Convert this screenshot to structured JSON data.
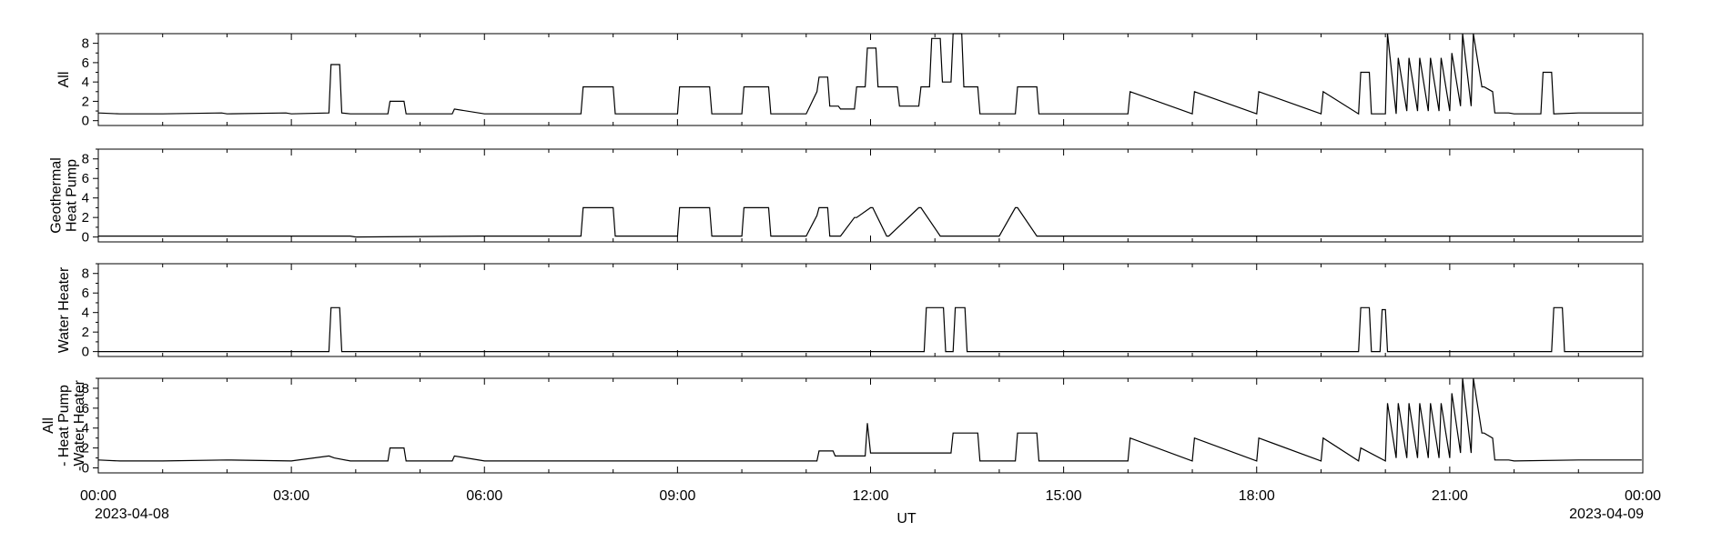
{
  "figure": {
    "x_axis_label": "UT",
    "x_ticks": [
      "00:00",
      "03:00",
      "06:00",
      "09:00",
      "12:00",
      "15:00",
      "18:00",
      "21:00",
      "00:00"
    ],
    "x_start_date": "2023-04-08",
    "x_end_date": "2023-04-09",
    "y_ticks": [
      "0",
      "2",
      "4",
      "6",
      "8"
    ]
  },
  "chart_data": [
    {
      "type": "line",
      "ylabel": [
        "All"
      ],
      "xlim": [
        "2023-04-08 00:00",
        "2023-04-09 00:00"
      ],
      "ylim": [
        -0.5,
        9
      ],
      "series": [
        {
          "x": [
            "00:00",
            "00:20",
            "01:00",
            "01:55",
            "02:00",
            "02:55",
            "03:00",
            "03:35",
            "03:37",
            "03:45",
            "03:47",
            "03:55",
            "04:00",
            "04:30",
            "04:32",
            "04:45",
            "04:47",
            "05:30",
            "05:32",
            "06:00",
            "06:55",
            "07:00",
            "07:30",
            "07:32",
            "08:00",
            "08:02",
            "09:00",
            "09:02",
            "09:30",
            "09:32",
            "10:00",
            "10:02",
            "10:25",
            "10:27",
            "11:00",
            "11:10",
            "11:12",
            "11:20",
            "11:22",
            "11:30",
            "11:32",
            "11:45",
            "11:47",
            "11:55",
            "11:57",
            "12:05",
            "12:07",
            "12:25",
            "12:27",
            "12:45",
            "12:47",
            "12:55",
            "12:57",
            "13:05",
            "13:07",
            "13:15",
            "13:17",
            "13:25",
            "13:27",
            "13:40",
            "13:42",
            "14:00",
            "14:15",
            "14:17",
            "14:35",
            "14:37",
            "15:00",
            "16:00",
            "16:02",
            "17:00",
            "17:02",
            "18:00",
            "18:02",
            "19:00",
            "19:02",
            "19:35",
            "19:37",
            "19:45",
            "19:47",
            "20:00",
            "20:02",
            "20:10",
            "20:12",
            "20:20",
            "20:22",
            "20:30",
            "20:32",
            "20:40",
            "20:42",
            "20:50",
            "20:52",
            "21:00",
            "21:02",
            "21:10",
            "21:12",
            "21:20",
            "21:22",
            "21:30",
            "21:32",
            "21:40",
            "21:42",
            "21:55",
            "22:00",
            "22:25",
            "22:27",
            "22:35",
            "22:37",
            "23:00",
            "23:59"
          ],
          "y": [
            0.8,
            0.7,
            0.7,
            0.8,
            0.7,
            0.8,
            0.7,
            0.8,
            5.8,
            5.8,
            0.8,
            0.7,
            0.7,
            0.7,
            2.0,
            2.0,
            0.7,
            0.7,
            1.2,
            0.7,
            0.7,
            0.7,
            0.7,
            3.5,
            3.5,
            0.7,
            0.7,
            3.5,
            3.5,
            0.7,
            0.7,
            3.5,
            3.5,
            0.7,
            0.7,
            3.0,
            4.5,
            4.5,
            1.5,
            1.5,
            1.2,
            1.2,
            3.5,
            3.5,
            7.5,
            7.5,
            3.5,
            3.5,
            1.5,
            1.5,
            3.5,
            3.5,
            8.5,
            8.5,
            4.0,
            4.0,
            9.0,
            9.0,
            3.5,
            3.5,
            0.7,
            0.7,
            0.7,
            3.5,
            3.5,
            0.7,
            0.7,
            0.7,
            3.0,
            0.7,
            3.0,
            0.7,
            3.0,
            0.7,
            3.0,
            0.7,
            5.0,
            5.0,
            0.7,
            0.7,
            9.0,
            0.7,
            6.5,
            1.0,
            6.5,
            1.0,
            6.5,
            1.0,
            6.5,
            1.0,
            6.5,
            1.0,
            7.0,
            1.5,
            9.0,
            1.5,
            9.0,
            3.5,
            3.5,
            3.0,
            0.8,
            0.8,
            0.7,
            0.7,
            5.0,
            5.0,
            0.7,
            0.8,
            0.8
          ]
        }
      ]
    },
    {
      "type": "line",
      "ylabel": [
        "Geothermal",
        "Heat Pump"
      ],
      "xlim": [
        "2023-04-08 00:00",
        "2023-04-09 00:00"
      ],
      "ylim": [
        -0.5,
        9
      ],
      "series": [
        {
          "x": [
            "00:00",
            "03:55",
            "04:00",
            "05:55",
            "07:00",
            "07:30",
            "07:32",
            "08:00",
            "08:02",
            "09:00",
            "09:02",
            "09:30",
            "09:32",
            "10:00",
            "10:02",
            "10:25",
            "10:27",
            "11:00",
            "11:10",
            "11:12",
            "11:20",
            "11:22",
            "11:30",
            "11:32",
            "11:45",
            "11:47",
            "12:00",
            "12:02",
            "12:15",
            "12:17",
            "12:45",
            "12:47",
            "13:05",
            "13:07",
            "13:30",
            "13:32",
            "13:45",
            "13:47",
            "14:00",
            "14:15",
            "14:17",
            "14:35",
            "14:37",
            "15:00",
            "23:59"
          ],
          "y": [
            0.1,
            0.1,
            0.0,
            0.1,
            0.1,
            0.1,
            3.0,
            3.0,
            0.1,
            0.1,
            3.0,
            3.0,
            0.1,
            0.1,
            3.0,
            3.0,
            0.1,
            0.1,
            2.2,
            3.0,
            3.0,
            0.1,
            0.1,
            0.1,
            2.0,
            2.0,
            3.0,
            3.0,
            0.1,
            0.1,
            3.0,
            3.0,
            0.1,
            0.1,
            0.1,
            0.1,
            0.1,
            0.1,
            0.1,
            3.0,
            3.0,
            0.1,
            0.1,
            0.1,
            0.1
          ]
        }
      ]
    },
    {
      "type": "line",
      "ylabel": [
        "Water Heater"
      ],
      "xlim": [
        "2023-04-08 00:00",
        "2023-04-09 00:00"
      ],
      "ylim": [
        -0.5,
        9
      ],
      "series": [
        {
          "x": [
            "00:00",
            "03:35",
            "03:37",
            "03:45",
            "03:47",
            "12:50",
            "12:52",
            "13:08",
            "13:10",
            "13:17",
            "13:19",
            "13:28",
            "13:30",
            "19:35",
            "19:37",
            "19:45",
            "19:47",
            "19:55",
            "19:57",
            "20:00",
            "20:02",
            "22:35",
            "22:37",
            "22:45",
            "22:47",
            "23:59"
          ],
          "y": [
            0.0,
            0.0,
            4.5,
            4.5,
            0.0,
            0.0,
            4.5,
            4.5,
            0.0,
            0.0,
            4.5,
            4.5,
            0.0,
            0.0,
            4.5,
            4.5,
            0.0,
            0.0,
            4.3,
            4.3,
            0.0,
            0.0,
            4.5,
            4.5,
            0.0,
            0.0
          ]
        }
      ]
    },
    {
      "type": "line",
      "ylabel": [
        "All",
        "- Heat Pump",
        "-Water Heater"
      ],
      "xlim": [
        "2023-04-08 00:00",
        "2023-04-09 00:00"
      ],
      "ylim": [
        -0.5,
        9
      ],
      "series": [
        {
          "x": [
            "00:00",
            "00:20",
            "01:00",
            "02:00",
            "03:00",
            "03:35",
            "03:40",
            "03:55",
            "04:00",
            "04:30",
            "04:32",
            "04:45",
            "04:47",
            "05:30",
            "05:32",
            "06:00",
            "07:00",
            "08:00",
            "09:00",
            "10:00",
            "11:00",
            "11:10",
            "11:12",
            "11:25",
            "11:27",
            "11:55",
            "11:57",
            "12:00",
            "12:02",
            "12:30",
            "12:32",
            "13:00",
            "13:15",
            "13:17",
            "13:40",
            "13:42",
            "14:00",
            "14:15",
            "14:17",
            "14:35",
            "14:37",
            "15:00",
            "16:00",
            "16:02",
            "17:00",
            "17:02",
            "18:00",
            "18:02",
            "19:00",
            "19:02",
            "19:35",
            "19:37",
            "20:00",
            "20:02",
            "20:10",
            "20:12",
            "20:20",
            "20:22",
            "20:30",
            "20:32",
            "20:40",
            "20:42",
            "20:50",
            "20:52",
            "21:00",
            "21:02",
            "21:10",
            "21:12",
            "21:20",
            "21:22",
            "21:30",
            "21:32",
            "21:40",
            "21:42",
            "21:55",
            "22:00",
            "23:00",
            "23:59"
          ],
          "y": [
            0.8,
            0.7,
            0.7,
            0.8,
            0.7,
            1.2,
            1.0,
            0.7,
            0.7,
            0.7,
            2.0,
            2.0,
            0.7,
            0.7,
            1.2,
            0.7,
            0.7,
            0.7,
            0.7,
            0.7,
            0.7,
            0.7,
            1.7,
            1.7,
            1.2,
            1.2,
            4.5,
            1.5,
            1.5,
            1.5,
            1.5,
            1.5,
            1.5,
            3.5,
            3.5,
            0.7,
            0.7,
            0.7,
            3.5,
            3.5,
            0.7,
            0.7,
            0.7,
            3.0,
            0.7,
            3.0,
            0.7,
            3.0,
            0.7,
            3.0,
            0.7,
            2.0,
            0.7,
            6.5,
            1.0,
            6.5,
            1.0,
            6.5,
            1.0,
            6.5,
            1.0,
            6.5,
            1.0,
            6.5,
            1.0,
            7.5,
            1.5,
            9.0,
            1.5,
            9.0,
            3.5,
            3.5,
            3.0,
            0.8,
            0.8,
            0.7,
            0.8,
            0.8
          ]
        }
      ]
    }
  ]
}
